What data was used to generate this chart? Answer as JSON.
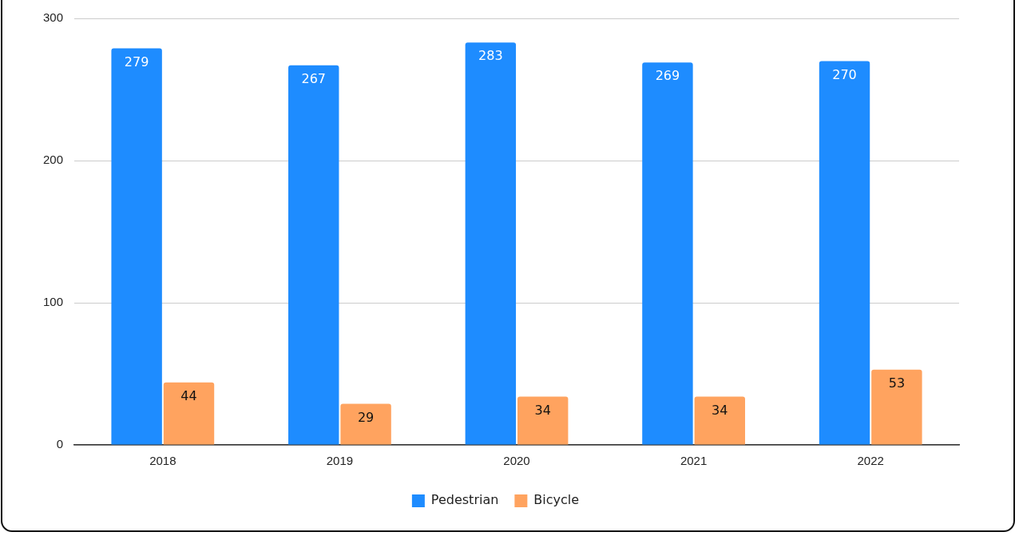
{
  "chart_data": {
    "type": "bar",
    "categories": [
      "2018",
      "2019",
      "2020",
      "2021",
      "2022"
    ],
    "series": [
      {
        "name": "Pedestrian",
        "color": "#1e8cff",
        "values": [
          279,
          267,
          283,
          269,
          270
        ]
      },
      {
        "name": "Bicycle",
        "color": "#ffa35f",
        "values": [
          44,
          29,
          34,
          34,
          53
        ]
      }
    ],
    "ylim": [
      0,
      300
    ],
    "yticks": [
      0,
      100,
      200,
      300
    ],
    "grid": "y",
    "legend": "bottom",
    "data_labels": true
  }
}
